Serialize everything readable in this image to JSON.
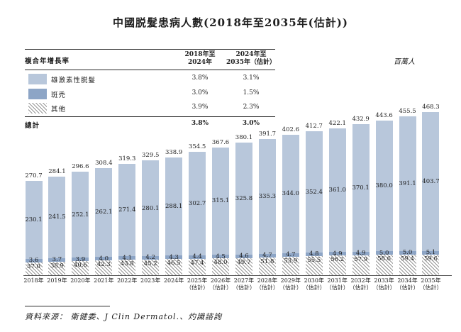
{
  "title": "中國脱髮患病人數(2018年至2035年(估計))",
  "unit_label": "百萬人",
  "colors": {
    "androgenetic_fill": "#b8c7db",
    "areata_fill": "#8da5c6",
    "hatch_line": "#979797",
    "text": "#1f1f1f"
  },
  "cagr_table": {
    "title": "複合年增長率",
    "col1_header": "2018年至\n2024年",
    "col2_header": "2024年至\n2035年（估計）",
    "rows": [
      {
        "label": "雄激素性脱髮",
        "swatch": "light",
        "col1": "3.8%",
        "col2": "3.1%"
      },
      {
        "label": "斑禿",
        "swatch": "dark",
        "col1": "3.0%",
        "col2": "1.5%"
      },
      {
        "label": "其他",
        "swatch": "hatch",
        "col1": "3.9%",
        "col2": "2.3%"
      }
    ],
    "total_label": "總計",
    "total_col1": "3.8%",
    "total_col2": "3.0%"
  },
  "chart_data": {
    "type": "bar",
    "stacked": true,
    "title": "中國脱髮患病人數(2018年至2035年(估計))",
    "ylabel": "百萬人",
    "legend_position": "top-left-table",
    "grid": false,
    "categories": [
      "2018年",
      "2019年",
      "2020年",
      "2021年",
      "2022年",
      "2023年",
      "2024年",
      "2025年\n（估計）",
      "2026年\n（估計）",
      "2027年\n（估計）",
      "2028年\n（估計）",
      "2029年\n（估計）",
      "2030年\n（估計）",
      "2031年\n（估計）",
      "2032年\n（估計）",
      "2033年\n（估計）",
      "2034年\n（估計）",
      "2035年\n（估計）"
    ],
    "series": [
      {
        "name": "其他",
        "values": [
          37.0,
          38.9,
          40.6,
          42.3,
          43.8,
          45.2,
          46.5,
          47.4,
          48.0,
          49.7,
          51.8,
          53.9,
          55.5,
          56.2,
          57.9,
          58.6,
          59.4,
          59.6
        ]
      },
      {
        "name": "斑禿",
        "values": [
          3.6,
          3.7,
          3.9,
          4.0,
          4.1,
          4.2,
          4.3,
          4.4,
          4.5,
          4.6,
          4.7,
          4.7,
          4.8,
          4.9,
          4.9,
          5.0,
          5.0,
          5.1
        ]
      },
      {
        "name": "雄激素性脱髮",
        "values": [
          230.1,
          241.5,
          252.1,
          262.1,
          271.4,
          280.1,
          288.1,
          302.7,
          315.1,
          325.8,
          335.3,
          344.0,
          352.4,
          361.0,
          370.1,
          380.0,
          391.1,
          403.7
        ]
      }
    ],
    "totals": [
      270.7,
      284.1,
      296.6,
      308.4,
      319.3,
      329.5,
      338.9,
      354.5,
      367.6,
      380.1,
      391.7,
      402.6,
      412.7,
      422.1,
      432.9,
      443.6,
      455.5,
      468.3
    ]
  },
  "source": "資料來源： 衛健委、J Clin Dermatol.、灼識諮詢"
}
